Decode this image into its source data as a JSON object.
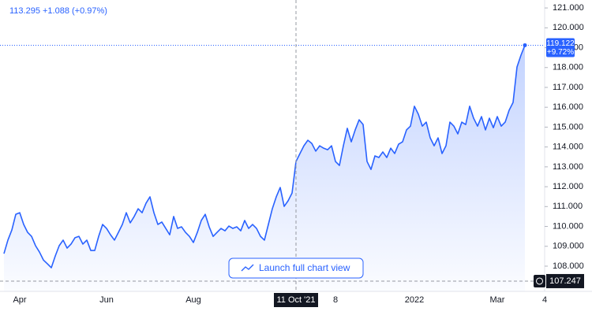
{
  "chart_data": {
    "type": "line",
    "legend_text": "113.295 +1.088 (+0.97%)",
    "categories": [
      null,
      null,
      null,
      null,
      "Apr",
      null,
      null,
      null,
      null,
      null,
      null,
      null,
      null,
      null,
      null,
      null,
      null,
      null,
      null,
      null,
      null,
      null,
      null,
      null,
      null,
      null,
      "Jun",
      null,
      null,
      null,
      null,
      null,
      null,
      null,
      null,
      null,
      null,
      null,
      null,
      null,
      null,
      null,
      null,
      null,
      null,
      null,
      null,
      null,
      "Aug",
      null,
      null,
      null,
      null,
      null,
      null,
      null,
      null,
      null,
      null,
      null,
      null,
      null,
      null,
      null,
      null,
      null,
      null,
      null,
      null,
      null,
      null,
      null,
      null,
      null,
      "11 Oct '21",
      null,
      null,
      null,
      null,
      null,
      null,
      null,
      null,
      null,
      "8",
      null,
      null,
      null,
      null,
      null,
      null,
      null,
      null,
      null,
      null,
      null,
      null,
      null,
      null,
      null,
      null,
      null,
      null,
      null,
      "2022",
      null,
      null,
      null,
      null,
      null,
      null,
      null,
      null,
      null,
      null,
      null,
      null,
      null,
      null,
      null,
      null,
      null,
      null,
      null,
      null,
      "Mar",
      null,
      null,
      null,
      null,
      null,
      null,
      null,
      null,
      null,
      null,
      null,
      "4"
    ],
    "series": [
      {
        "color": "#2962ff",
        "values": [
          108.63,
          109.31,
          109.82,
          110.61,
          110.69,
          110.1,
          109.7,
          109.5,
          109.03,
          108.71,
          108.31,
          108.12,
          107.92,
          108.51,
          109.03,
          109.31,
          108.91,
          109.11,
          109.43,
          109.5,
          109.11,
          109.31,
          108.79,
          108.79,
          109.5,
          110.1,
          109.9,
          109.58,
          109.31,
          109.7,
          110.1,
          110.69,
          110.18,
          110.5,
          110.89,
          110.69,
          111.17,
          111.49,
          110.69,
          110.1,
          110.22,
          109.9,
          109.58,
          110.5,
          109.9,
          109.98,
          109.7,
          109.5,
          109.19,
          109.7,
          110.3,
          110.61,
          109.98,
          109.5,
          109.7,
          109.9,
          109.78,
          110.02,
          109.9,
          109.98,
          109.78,
          110.3,
          109.9,
          110.1,
          109.9,
          109.5,
          109.31,
          110.1,
          110.89,
          111.49,
          111.96,
          111.01,
          111.29,
          111.68,
          113.27,
          113.67,
          114.06,
          114.34,
          114.18,
          113.79,
          114.06,
          113.94,
          113.86,
          114.06,
          113.27,
          113.07,
          114.06,
          114.94,
          114.26,
          114.86,
          115.37,
          115.13,
          113.27,
          112.87,
          113.55,
          113.47,
          113.75,
          113.47,
          113.94,
          113.67,
          114.14,
          114.26,
          114.86,
          115.05,
          116.05,
          115.65,
          115.05,
          115.25,
          114.46,
          114.06,
          114.46,
          113.67,
          114.06,
          115.25,
          115.05,
          114.66,
          115.25,
          115.13,
          116.05,
          115.45,
          115.05,
          115.53,
          114.86,
          115.45,
          114.97,
          115.53,
          115.05,
          115.25,
          115.85,
          116.24,
          118.03,
          118.62,
          119.122,
          null,
          null,
          null,
          null,
          null
        ]
      }
    ],
    "ylim": [
      106.73,
      121.4
    ],
    "yticks": [
      {
        "value": 108,
        "label": "108.000"
      },
      {
        "value": 109,
        "label": "109.000"
      },
      {
        "value": 110,
        "label": "110.000"
      },
      {
        "value": 111,
        "label": "111.000"
      },
      {
        "value": 112,
        "label": "112.000"
      },
      {
        "value": 113,
        "label": "113.000"
      },
      {
        "value": 114,
        "label": "114.000"
      },
      {
        "value": 115,
        "label": "115.000"
      },
      {
        "value": 116,
        "label": "116.000"
      },
      {
        "value": 117,
        "label": "117.000"
      },
      {
        "value": 118,
        "label": "118.000"
      },
      {
        "value": 119,
        "label": "119.000"
      },
      {
        "value": 120,
        "label": "120.000"
      },
      {
        "value": 121,
        "label": "121.000"
      }
    ],
    "last_price_label": "119.122",
    "last_change_label": "+9.72%",
    "crosshair": {
      "x": "11 Oct '21",
      "y": 107.247
    },
    "button_text": "Launch full chart view",
    "area_fill": true
  }
}
